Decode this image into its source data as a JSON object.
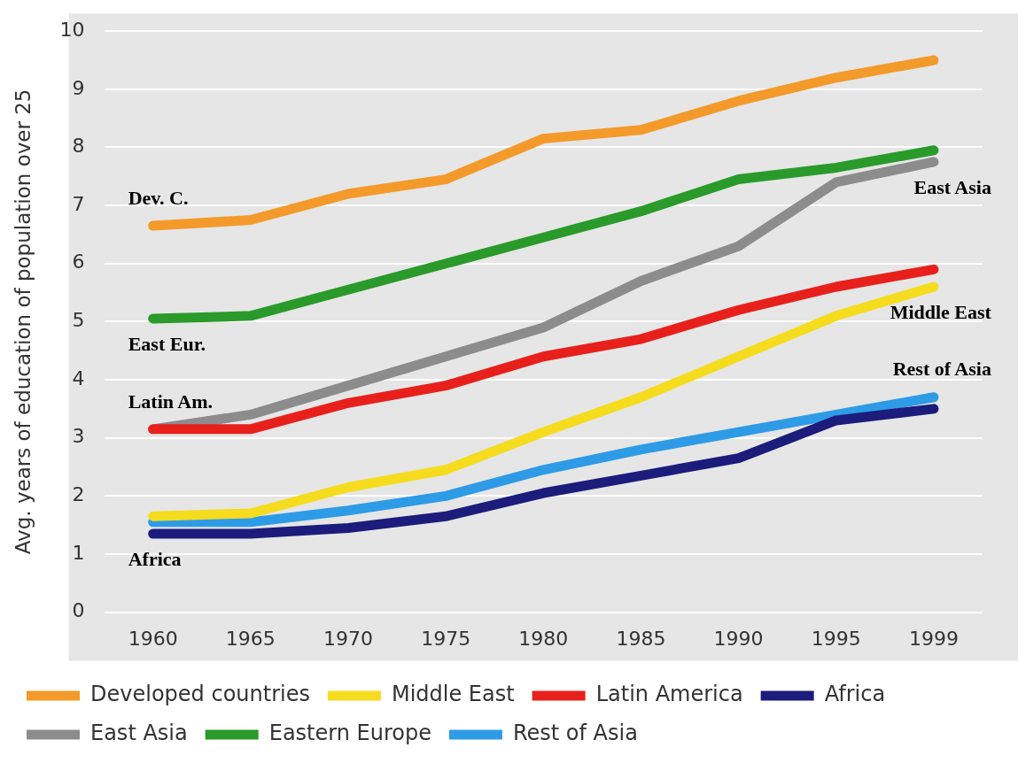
{
  "chart_data": {
    "type": "line",
    "ylabel": "Avg. years of education of population over 25",
    "categories": [
      "1960",
      "1965",
      "1970",
      "1975",
      "1980",
      "1985",
      "1990",
      "1995",
      "1999"
    ],
    "ylim": [
      0,
      10
    ],
    "yticks": [
      0,
      1,
      2,
      3,
      4,
      5,
      6,
      7,
      8,
      9,
      10
    ],
    "grid": "y",
    "legend": "bottom",
    "marker": "none",
    "line_style": "solid",
    "series": [
      {
        "name": "Developed countries",
        "color": "#f39a2b",
        "values": [
          6.65,
          6.75,
          7.2,
          7.45,
          8.15,
          8.3,
          8.8,
          9.2,
          9.5
        ]
      },
      {
        "name": "Middle East",
        "color": "#f5dc1e",
        "values": [
          1.65,
          1.7,
          2.15,
          2.45,
          3.1,
          3.7,
          4.4,
          5.1,
          5.6
        ]
      },
      {
        "name": "Latin America",
        "color": "#e8201c",
        "values": [
          3.15,
          3.15,
          3.6,
          3.9,
          4.4,
          4.7,
          5.2,
          5.6,
          5.9
        ]
      },
      {
        "name": "Africa",
        "color": "#1c1c7c",
        "values": [
          1.35,
          1.35,
          1.45,
          1.65,
          2.05,
          2.35,
          2.65,
          3.3,
          3.5
        ]
      },
      {
        "name": "East Asia",
        "color": "#8c8c8c",
        "values": [
          3.15,
          3.4,
          3.9,
          4.4,
          4.9,
          5.7,
          6.3,
          7.4,
          7.75
        ]
      },
      {
        "name": "Eastern Europe",
        "color": "#2a9a2a",
        "values": [
          5.05,
          5.1,
          5.55,
          6.0,
          6.45,
          6.9,
          7.45,
          7.65,
          7.95
        ]
      },
      {
        "name": "Rest of Asia",
        "color": "#2e9be6",
        "values": [
          1.55,
          1.55,
          1.75,
          2.0,
          2.45,
          2.8,
          3.1,
          3.4,
          3.7
        ]
      }
    ],
    "annotations": [
      {
        "text": "Dev. C.",
        "x": "1960",
        "y": 6.65
      },
      {
        "text": "East Eur.",
        "x": "1960",
        "y": 5.05
      },
      {
        "text": "Latin Am.",
        "x": "1960",
        "y": 3.15
      },
      {
        "text": "Africa",
        "x": "1960",
        "y": 1.35
      },
      {
        "text": "East Asia",
        "x": "1999",
        "y": 7.75
      },
      {
        "text": "Middle East",
        "x": "1999",
        "y": 5.6
      },
      {
        "text": "Rest of Asia",
        "x": "1999",
        "y": 3.7
      }
    ]
  }
}
